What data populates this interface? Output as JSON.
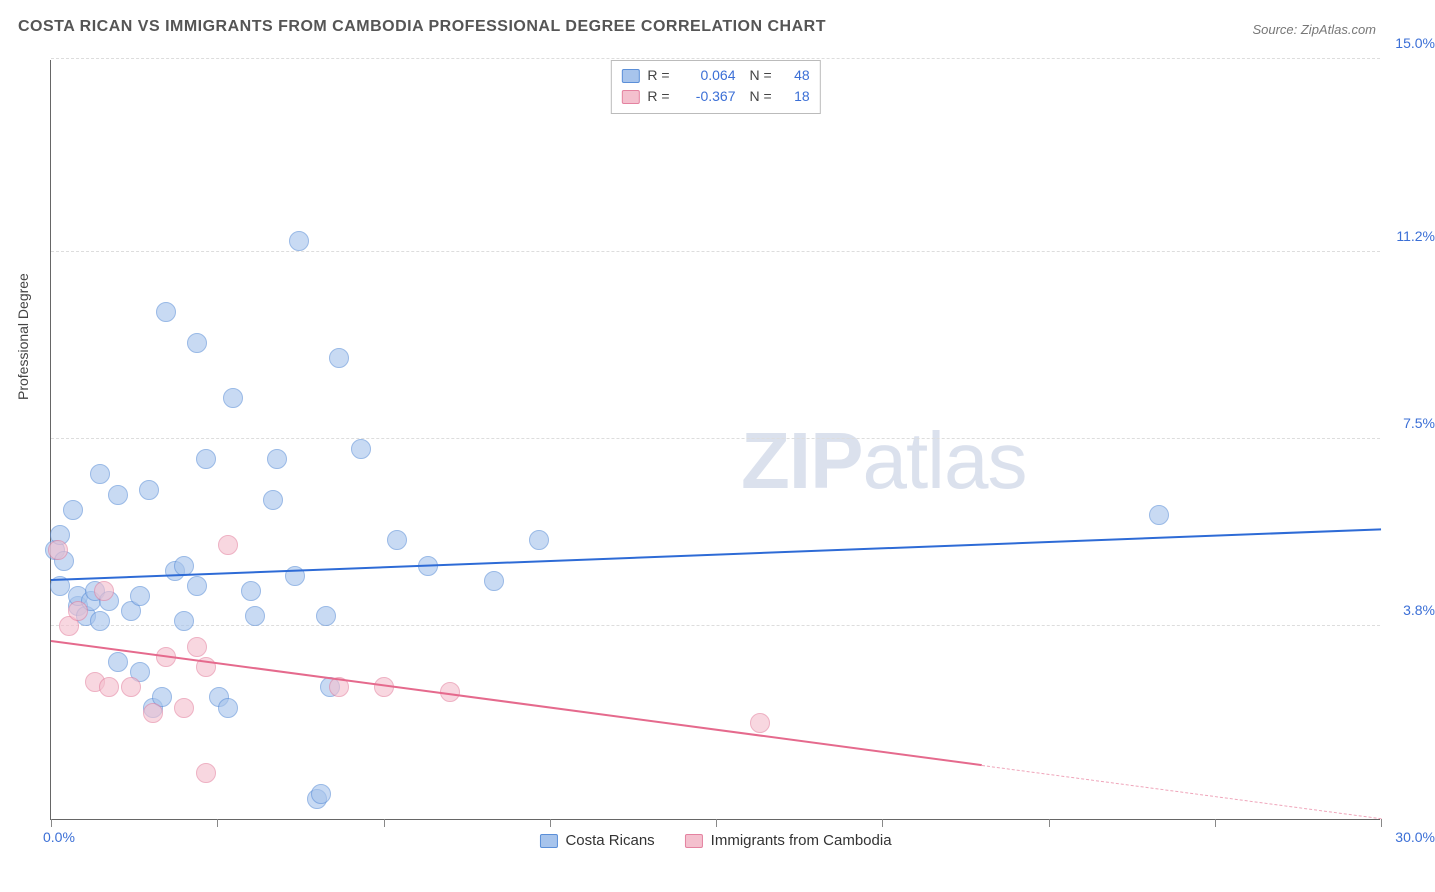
{
  "title": "COSTA RICAN VS IMMIGRANTS FROM CAMBODIA PROFESSIONAL DEGREE CORRELATION CHART",
  "source": "Source: ZipAtlas.com",
  "ylabel": "Professional Degree",
  "watermark_a": "ZIP",
  "watermark_b": "atlas",
  "chart": {
    "type": "scatter",
    "xlim": [
      0,
      30
    ],
    "ylim": [
      0,
      15
    ],
    "axis_color": "#666666",
    "grid_color": "#dddddd",
    "background_color": "#ffffff",
    "y_ticks": [
      {
        "v": 3.8,
        "label": "3.8%",
        "color": "#3b6fd6"
      },
      {
        "v": 7.5,
        "label": "7.5%",
        "color": "#3b6fd6"
      },
      {
        "v": 11.2,
        "label": "11.2%",
        "color": "#3b6fd6"
      },
      {
        "v": 15.0,
        "label": "15.0%",
        "color": "#3b6fd6"
      }
    ],
    "x_ticks": [
      0,
      3.75,
      7.5,
      11.25,
      15,
      18.75,
      22.5,
      26.25,
      30
    ],
    "x0_label": "0.0%",
    "xmax_label": "30.0%",
    "xlabel_color": "#3b6fd6",
    "marker_radius": 10,
    "series": [
      {
        "name": "Costa Ricans",
        "fill": "#a7c4ec",
        "stroke": "#5b8fd8",
        "r_label": "R =",
        "n_label": "N =",
        "r_value": "0.064",
        "n_value": "48",
        "stat_color": "#3b6fd6",
        "trend": {
          "x1": 0,
          "y1": 4.7,
          "x2": 30,
          "y2": 5.7,
          "color": "#2e6bd6",
          "dash_from_x": null
        },
        "points": [
          [
            0.1,
            5.3
          ],
          [
            0.2,
            5.6
          ],
          [
            0.2,
            4.6
          ],
          [
            0.3,
            5.1
          ],
          [
            0.5,
            6.1
          ],
          [
            0.6,
            4.2
          ],
          [
            0.6,
            4.4
          ],
          [
            0.8,
            4.0
          ],
          [
            0.9,
            4.3
          ],
          [
            1.0,
            4.5
          ],
          [
            1.1,
            3.9
          ],
          [
            1.1,
            6.8
          ],
          [
            1.3,
            4.3
          ],
          [
            1.5,
            3.1
          ],
          [
            1.5,
            6.4
          ],
          [
            1.8,
            4.1
          ],
          [
            2.0,
            2.9
          ],
          [
            2.0,
            4.4
          ],
          [
            2.2,
            6.5
          ],
          [
            2.3,
            2.2
          ],
          [
            2.5,
            2.4
          ],
          [
            2.6,
            10.0
          ],
          [
            2.8,
            4.9
          ],
          [
            3.0,
            3.9
          ],
          [
            3.0,
            5.0
          ],
          [
            3.3,
            9.4
          ],
          [
            3.3,
            4.6
          ],
          [
            3.5,
            7.1
          ],
          [
            3.8,
            2.4
          ],
          [
            4.0,
            2.2
          ],
          [
            4.1,
            8.3
          ],
          [
            4.5,
            4.5
          ],
          [
            4.6,
            4.0
          ],
          [
            5.0,
            6.3
          ],
          [
            5.1,
            7.1
          ],
          [
            5.5,
            4.8
          ],
          [
            5.6,
            11.4
          ],
          [
            6.0,
            0.4
          ],
          [
            6.1,
            0.5
          ],
          [
            6.2,
            4.0
          ],
          [
            6.3,
            2.6
          ],
          [
            6.5,
            9.1
          ],
          [
            7.0,
            7.3
          ],
          [
            7.8,
            5.5
          ],
          [
            8.5,
            5.0
          ],
          [
            10.0,
            4.7
          ],
          [
            11.0,
            5.5
          ],
          [
            25.0,
            6.0
          ]
        ]
      },
      {
        "name": "Immigrants from Cambodia",
        "fill": "#f4c0ce",
        "stroke": "#e482a0",
        "r_label": "R =",
        "n_label": "N =",
        "r_value": "-0.367",
        "n_value": "18",
        "stat_color": "#3b6fd6",
        "trend": {
          "x1": 0,
          "y1": 3.5,
          "x2": 30,
          "y2": 0.0,
          "color": "#e56a8d",
          "dash_from_x": 21
        },
        "points": [
          [
            0.15,
            5.3
          ],
          [
            0.4,
            3.8
          ],
          [
            0.6,
            4.1
          ],
          [
            1.0,
            2.7
          ],
          [
            1.2,
            4.5
          ],
          [
            1.3,
            2.6
          ],
          [
            1.8,
            2.6
          ],
          [
            2.3,
            2.1
          ],
          [
            2.6,
            3.2
          ],
          [
            3.0,
            2.2
          ],
          [
            3.3,
            3.4
          ],
          [
            3.5,
            3.0
          ],
          [
            3.5,
            0.9
          ],
          [
            4.0,
            5.4
          ],
          [
            6.5,
            2.6
          ],
          [
            7.5,
            2.6
          ],
          [
            9.0,
            2.5
          ],
          [
            16.0,
            1.9
          ]
        ]
      }
    ],
    "legend": [
      {
        "label": "Costa Ricans",
        "fill": "#a7c4ec",
        "stroke": "#5b8fd8"
      },
      {
        "label": "Immigrants from Cambodia",
        "fill": "#f4c0ce",
        "stroke": "#e482a0"
      }
    ]
  }
}
